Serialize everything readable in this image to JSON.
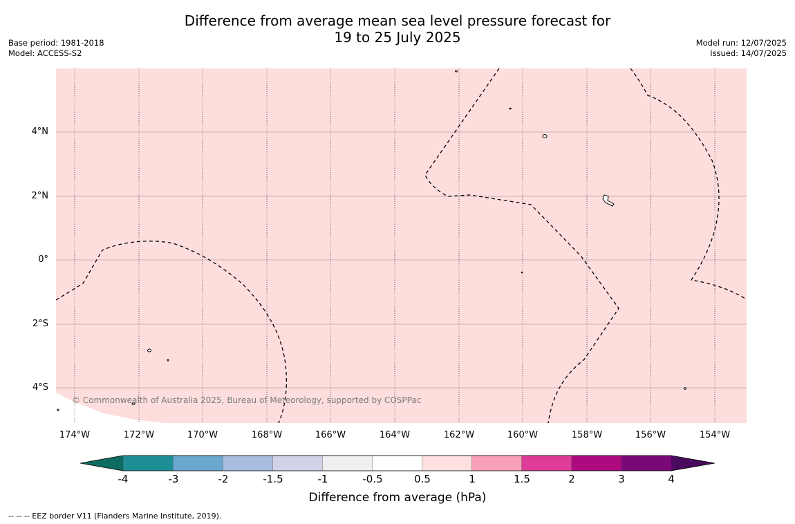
{
  "title": {
    "line1": "Difference from average mean sea level pressure forecast for",
    "line2": "19 to 25 July 2025"
  },
  "meta_left": {
    "base_period": "Base period: 1981-2018",
    "model": "Model: ACCESS-S2"
  },
  "meta_right": {
    "model_run": "Model run: 12/07/2025",
    "issued": "Issued: 14/07/2025"
  },
  "map": {
    "fill_color": "#fddedd",
    "lat_labels": [
      "4°N",
      "2°N",
      "0°",
      "2°S",
      "4°S"
    ],
    "lon_labels": [
      "174°W",
      "172°W",
      "170°W",
      "168°W",
      "166°W",
      "164°W",
      "162°W",
      "160°W",
      "158°W",
      "156°W",
      "154°W"
    ],
    "copyright": "© Commonwealth of Australia 2025, Bureau of Meteorology, supported by COSPPac"
  },
  "colorbar": {
    "title": "Difference from average (hPa)",
    "ticks": [
      "-4",
      "-3",
      "-2",
      "-1.5",
      "-1",
      "-0.5",
      "0.5",
      "1",
      "1.5",
      "2",
      "3",
      "4"
    ],
    "under_color": "#0e6b5f",
    "over_color": "#4a0a5e",
    "colors": [
      "#1e8e96",
      "#6aa8d0",
      "#a8bde0",
      "#d1d1e8",
      "#f1eff2",
      "#ffffff",
      "#fde0df",
      "#f7a0b8",
      "#de3c98",
      "#ad0a80",
      "#7a0878"
    ]
  },
  "footer": "--  --  -- EEZ border V11 (Flanders Marine Institute, 2019)."
}
